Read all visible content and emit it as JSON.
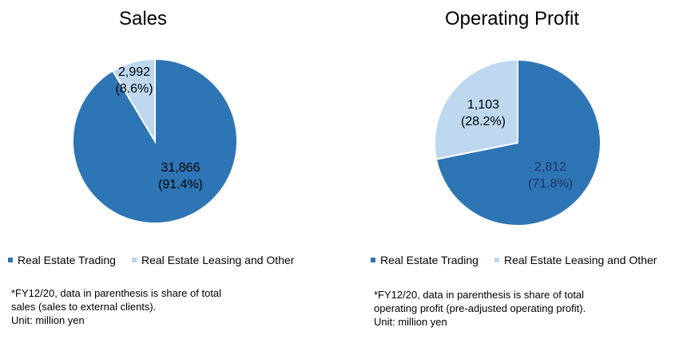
{
  "chart_data": [
    {
      "type": "pie",
      "title": "Sales",
      "slices": [
        {
          "label": "Real Estate Trading",
          "value": "31,866",
          "share": "(91.4%)",
          "numeric": 31866,
          "color": "#2e75b6"
        },
        {
          "label": "Real Estate Leasing and Other",
          "value": "2,992",
          "share": "(8.6%)",
          "numeric": 2992,
          "color": "#bdd7ee"
        }
      ],
      "legend_position": "bottom",
      "note": [
        "*FY12/20, data in parenthesis is share of total",
        "sales (sales to external clients).",
        "Unit: million yen"
      ]
    },
    {
      "type": "pie",
      "title": "Operating Profit",
      "slices": [
        {
          "label": "Real Estate Trading",
          "value": "2,812",
          "share": "(71.8%)",
          "numeric": 2812,
          "color": "#2e75b6"
        },
        {
          "label": "Real Estate Leasing and Other",
          "value": "1,103",
          "share": "(28.2%)",
          "numeric": 1103,
          "color": "#bdd7ee"
        }
      ],
      "legend_position": "bottom",
      "note": [
        "*FY12/20, data in parenthesis is share of total",
        "operating profit (pre-adjusted operating profit).",
        "Unit: million yen"
      ]
    }
  ]
}
